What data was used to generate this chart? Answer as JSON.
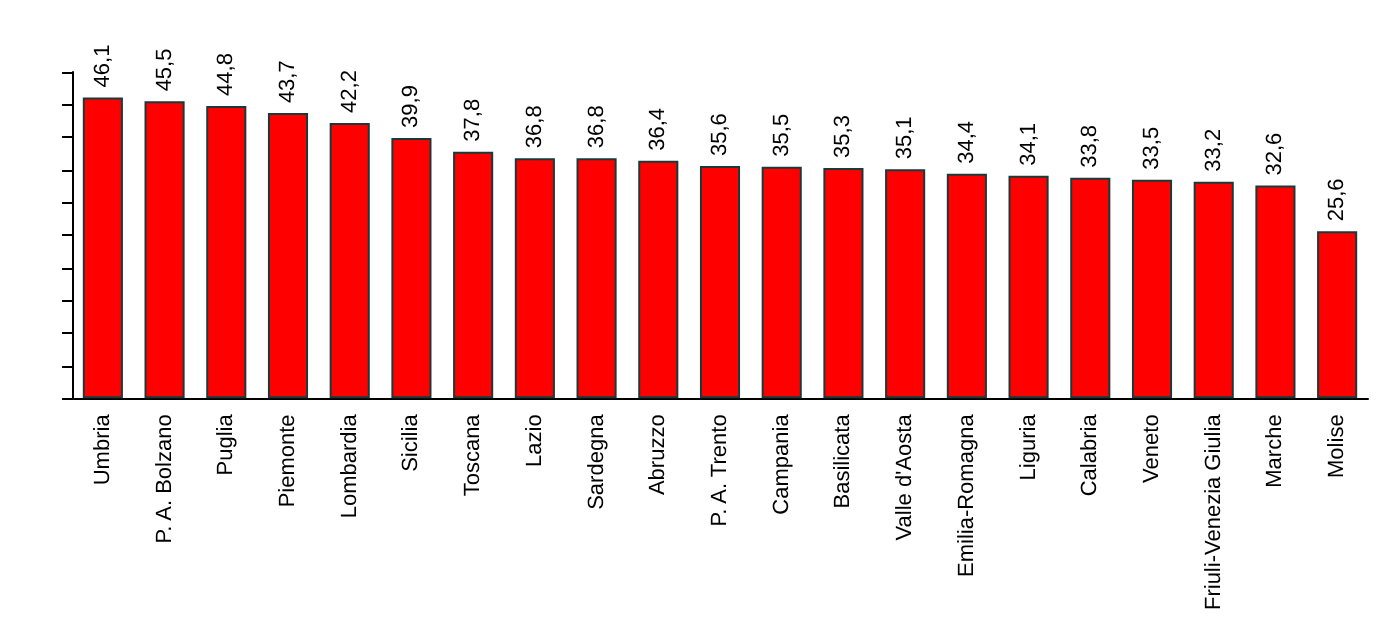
{
  "chart_data": {
    "type": "bar",
    "categories": [
      "Umbria",
      "P. A. Bolzano",
      "Puglia",
      "Piemonte",
      "Lombardia",
      "Sicilia",
      "Toscana",
      "Lazio",
      "Sardegna",
      "Abruzzo",
      "P. A. Trento",
      "Campania",
      "Basilicata",
      "Valle d'Aosta",
      "Emilia-Romagna",
      "Liguria",
      "Calabria",
      "Veneto",
      "Friuli-Venezia Giulia",
      "Marche",
      "Molise"
    ],
    "values": [
      46.1,
      45.5,
      44.8,
      43.7,
      42.2,
      39.9,
      37.8,
      36.8,
      36.8,
      36.4,
      35.6,
      35.5,
      35.3,
      35.1,
      34.4,
      34.1,
      33.8,
      33.5,
      33.2,
      32.6,
      25.6
    ],
    "value_labels": [
      "46,1",
      "45,5",
      "44,8",
      "43,7",
      "42,2",
      "39,9",
      "37,8",
      "36,8",
      "36,8",
      "36,4",
      "35,6",
      "35,5",
      "35,3",
      "35,1",
      "34,4",
      "34,1",
      "33,8",
      "33,5",
      "33,2",
      "32,6",
      "25,6"
    ],
    "color": "#ff0000",
    "ylim": [
      0,
      50
    ],
    "yticks": [
      {
        "value": 0,
        "label": null
      },
      {
        "value": 5,
        "label": null
      },
      {
        "value": 10,
        "label": null
      },
      {
        "value": 15,
        "label": null
      },
      {
        "value": 20,
        "label": null
      },
      {
        "value": 25,
        "label": null
      },
      {
        "value": 30,
        "label": null
      },
      {
        "value": 35,
        "label": null
      },
      {
        "value": 40,
        "label": null
      },
      {
        "value": 45,
        "label": null
      },
      {
        "value": 50,
        "label": null
      }
    ],
    "tick_labels": "x",
    "grid": false
  }
}
